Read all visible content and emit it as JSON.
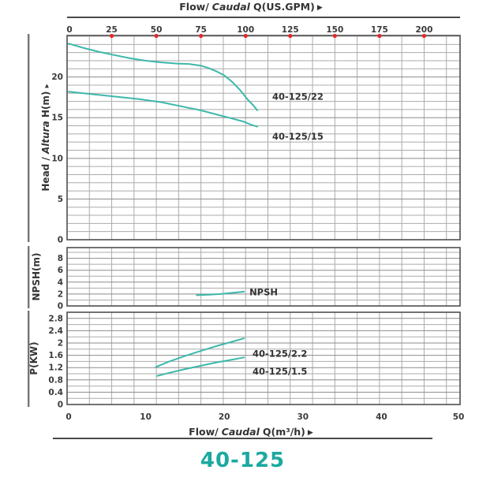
{
  "title": "40-125",
  "colors": {
    "curve": "#3cb8ab",
    "title": "#1ba9a0",
    "red_dot": "#e8272b",
    "grid_minor": "#ababab",
    "grid_major": "#8b8b8b",
    "border": "#4f4f4f",
    "side_bar": "#757575",
    "text": "#3a3a3a"
  },
  "axis_top": {
    "label_flow": "Flow/",
    "label_caudal": "Caudal",
    "label_unit": "Q(US.GPM)",
    "arrow": "▶",
    "ticks": [
      0,
      25,
      50,
      75,
      100,
      125,
      150,
      175,
      200
    ]
  },
  "axis_bottom": {
    "label_flow": "Flow/",
    "label_caudal": "Caudal",
    "label_unit": "Q(m³/h)",
    "arrow": "▶",
    "ticks": [
      0,
      10,
      20,
      30,
      40,
      50
    ]
  },
  "x_axis": {
    "xlim_bottom": [
      0,
      50
    ],
    "xlim_top": [
      0,
      220
    ],
    "gpm_per_m3h": 4.4029,
    "top_minor_step_gpm": 12.5
  },
  "chart_data": [
    {
      "id": "head",
      "type": "line",
      "ylabel_pre": "Head / ",
      "ylabel_italic": "Altura",
      "ylabel_post": " H(m) ",
      "ylabel_arrow": "▸",
      "ylim": [
        0,
        25.1
      ],
      "yticks": [
        0,
        5,
        10,
        15,
        20
      ],
      "minor_step": 1,
      "series": [
        {
          "name": "40-125/22",
          "x": [
            0.2,
            2,
            4,
            6,
            8,
            10,
            12,
            14,
            15.5,
            17,
            18,
            19,
            20,
            21,
            22,
            23,
            23.7,
            24.2
          ],
          "y": [
            24.1,
            23.6,
            23.1,
            22.7,
            22.3,
            22.0,
            21.8,
            21.65,
            21.6,
            21.4,
            21.1,
            20.7,
            20.2,
            19.4,
            18.4,
            17.2,
            16.5,
            15.9
          ],
          "label_pos": [
            26.1,
            17.2
          ]
        },
        {
          "name": "40-125/15",
          "x": [
            0.2,
            3,
            6,
            9,
            12,
            15,
            17,
            19,
            21,
            22.5,
            23.5,
            24.2
          ],
          "y": [
            18.2,
            17.9,
            17.6,
            17.3,
            16.9,
            16.3,
            15.9,
            15.4,
            14.9,
            14.5,
            14.1,
            13.9
          ],
          "label_pos": [
            26.1,
            12.3
          ]
        }
      ]
    },
    {
      "id": "npsh",
      "type": "line",
      "ylabel_pre": "NPSH(m)",
      "ylabel_italic": "",
      "ylabel_post": "",
      "ylabel_arrow": "",
      "ylim": [
        0,
        9.8
      ],
      "yticks": [
        0,
        2,
        4,
        6,
        8
      ],
      "minor_step": 1,
      "series": [
        {
          "name": "NPSH",
          "x": [
            16.5,
            18,
            19.5,
            21,
            22.5
          ],
          "y": [
            1.8,
            1.9,
            2.0,
            2.2,
            2.4
          ],
          "label_pos": [
            23.2,
            1.8
          ]
        }
      ]
    },
    {
      "id": "power",
      "type": "line",
      "ylabel_pre": "P(KW)",
      "ylabel_italic": "",
      "ylabel_post": "",
      "ylabel_arrow": "",
      "ylim": [
        0,
        3.0
      ],
      "yticks": [
        0,
        0.4,
        0.8,
        1.2,
        1.6,
        2,
        2.4,
        2.8
      ],
      "minor_step": 0.2,
      "series": [
        {
          "name": "40-125/2.2",
          "x": [
            11.3,
            13,
            15,
            17,
            19,
            21,
            22.5
          ],
          "y": [
            1.22,
            1.4,
            1.58,
            1.74,
            1.9,
            2.04,
            2.15
          ],
          "label_pos": [
            23.6,
            1.55
          ]
        },
        {
          "name": "40-125/1.5",
          "x": [
            11.5,
            13,
            15,
            17,
            19,
            21,
            22.5
          ],
          "y": [
            0.93,
            1.03,
            1.15,
            1.26,
            1.37,
            1.46,
            1.53
          ],
          "label_pos": [
            23.6,
            0.97
          ]
        }
      ]
    }
  ]
}
